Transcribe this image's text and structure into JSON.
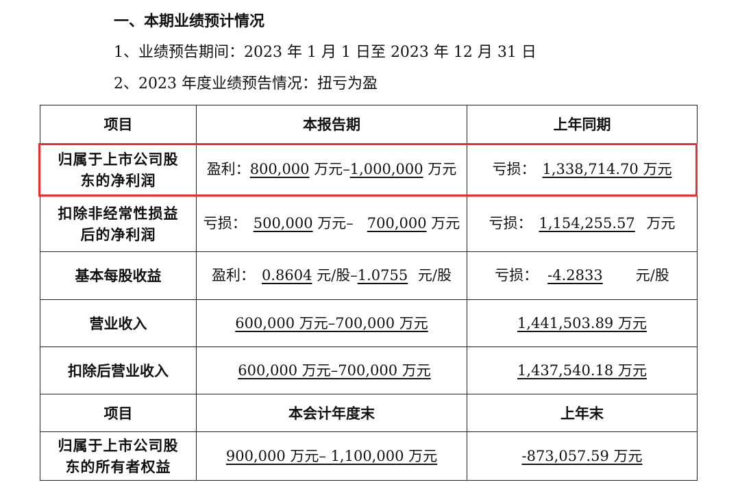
{
  "heading": "一、本期业绩预计情况",
  "item1": "1、业绩预告期间：2023 年 1 月 1 日至 2023 年 12 月 31 日",
  "item2": "2、2023 年度业绩预告情况：扭亏为盈",
  "table": {
    "header1": {
      "c1": "项目",
      "c2": "本报告期",
      "c3": "上年同期"
    },
    "rows": [
      {
        "label_l1": "归属于上市公司股",
        "label_l2": "东的净利润",
        "cur_prefix": "盈利：",
        "cur_v1": "800,000",
        "cur_mid": " 万元–",
        "cur_v2": "1,000,000",
        "cur_unit": " 万元",
        "prev_prefix": "亏损：",
        "prev_v": "1,338,714.70",
        "prev_unit": " 万元"
      },
      {
        "label_l1": "扣除非经常性损益",
        "label_l2": "后的净利润",
        "cur_prefix": "亏损：",
        "cur_v1": "500,000",
        "cur_mid": " 万元–",
        "cur_v2": "700,000",
        "cur_unit": " 万元",
        "prev_prefix": "亏损：",
        "prev_v": "1,154,255.57",
        "prev_unit": " 万元"
      },
      {
        "label": "基本每股收益",
        "cur_prefix": "盈利：",
        "cur_v1": "0.8604",
        "cur_mid": " 元/股–",
        "cur_v2": "1.0755",
        "cur_unit": " 元/股",
        "prev_prefix": "亏损：",
        "prev_v": "-4.2833",
        "prev_unit": "元/股"
      },
      {
        "label": "营业收入",
        "cur": "600,000 万元–700,000 万元",
        "prev": "1,441,503.89 万元"
      },
      {
        "label": "扣除后营业收入",
        "cur": "600,000 万元–700,000 万元",
        "prev": "1,437,540.18 万元"
      }
    ],
    "header2": {
      "c1": "项目",
      "c2": "本会计年度末",
      "c3": "上年末"
    },
    "equity": {
      "label_l1": "归属于上市公司股",
      "label_l2": "东的所有者权益",
      "cur": "900,000 万元– 1,100,000 万元",
      "prev": "-873,057.59 万元"
    }
  }
}
